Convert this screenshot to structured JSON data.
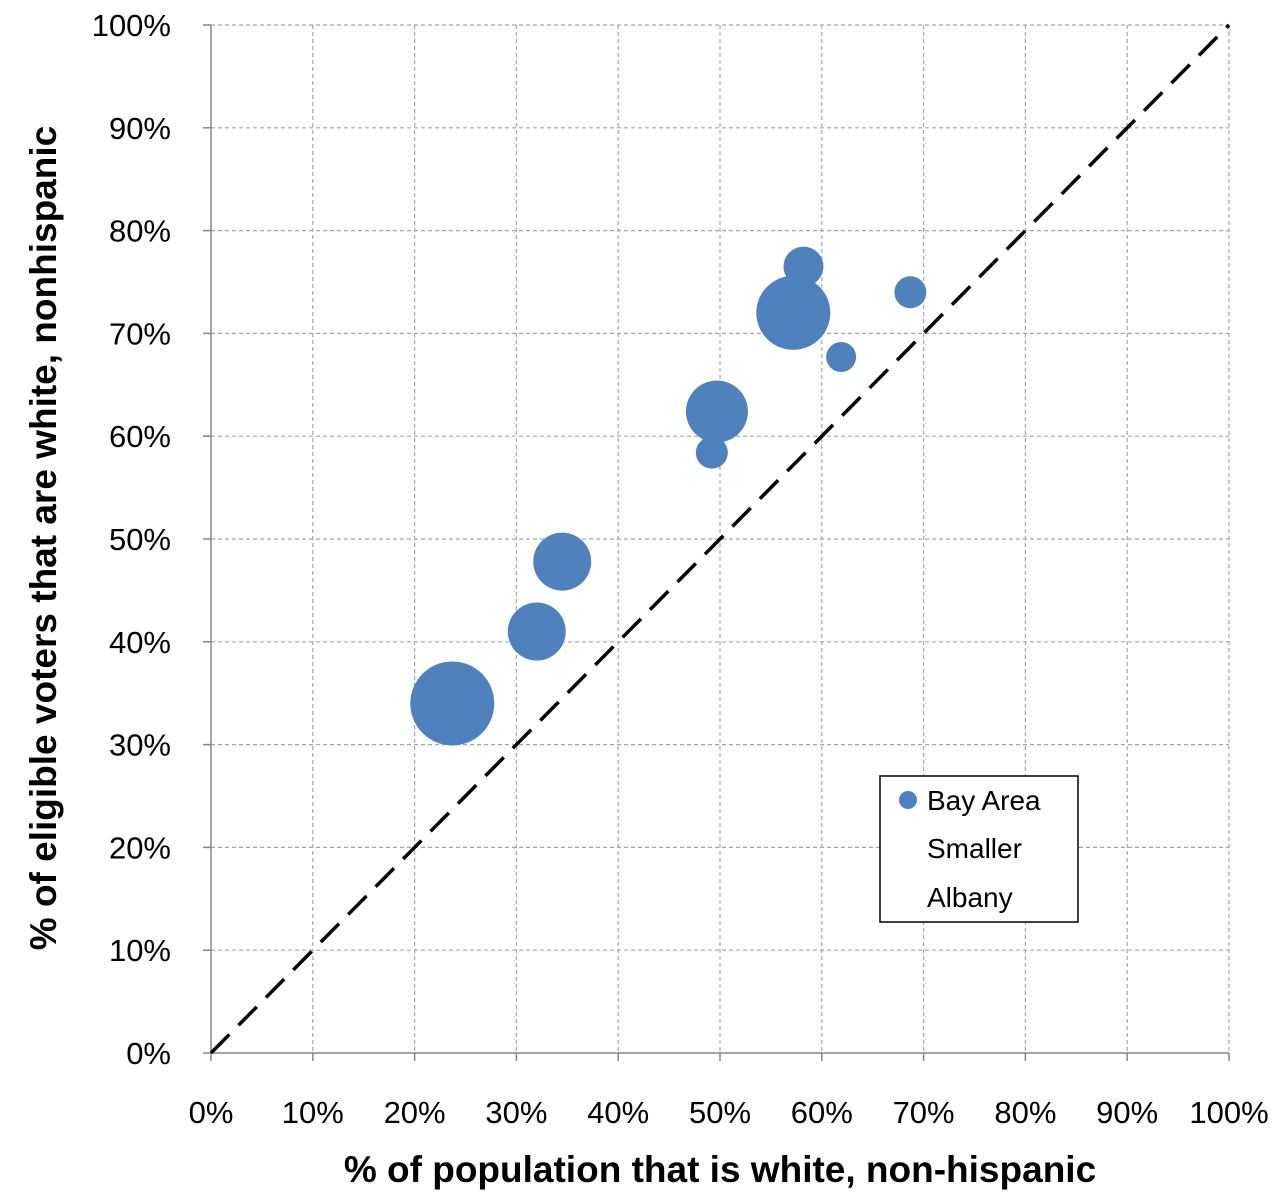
{
  "chart_data": {
    "type": "scatter",
    "subtype": "bubble",
    "xlabel": "% of population that is white, non-hispanic",
    "ylabel": "% of eligible voters that are white, nonhispanic",
    "xlim": [
      0,
      1
    ],
    "ylim": [
      0,
      1
    ],
    "x_ticks": [
      "0%",
      "10%",
      "20%",
      "30%",
      "40%",
      "50%",
      "60%",
      "70%",
      "80%",
      "90%",
      "100%"
    ],
    "y_ticks": [
      "0%",
      "10%",
      "20%",
      "30%",
      "40%",
      "50%",
      "60%",
      "70%",
      "80%",
      "90%",
      "100%"
    ],
    "grid": true,
    "grid_style": "dashed",
    "reference_line": {
      "from": [
        0,
        0
      ],
      "to": [
        1,
        1
      ],
      "style": "dashed",
      "color": "#000000"
    },
    "legend": {
      "placement": "bottom-right",
      "entries": [
        "Bay Area",
        "Smaller",
        "Albany"
      ]
    },
    "series": [
      {
        "name": "Bay Area",
        "color": "#4f81bd",
        "points": [
          {
            "x": 0.237,
            "y": 0.34,
            "size": 42
          },
          {
            "x": 0.32,
            "y": 0.41,
            "size": 29
          },
          {
            "x": 0.345,
            "y": 0.478,
            "size": 29
          },
          {
            "x": 0.492,
            "y": 0.584,
            "size": 16
          },
          {
            "x": 0.497,
            "y": 0.624,
            "size": 31
          },
          {
            "x": 0.572,
            "y": 0.72,
            "size": 37
          },
          {
            "x": 0.582,
            "y": 0.765,
            "size": 20
          },
          {
            "x": 0.619,
            "y": 0.677,
            "size": 15
          },
          {
            "x": 0.687,
            "y": 0.74,
            "size": 16
          }
        ]
      }
    ]
  }
}
